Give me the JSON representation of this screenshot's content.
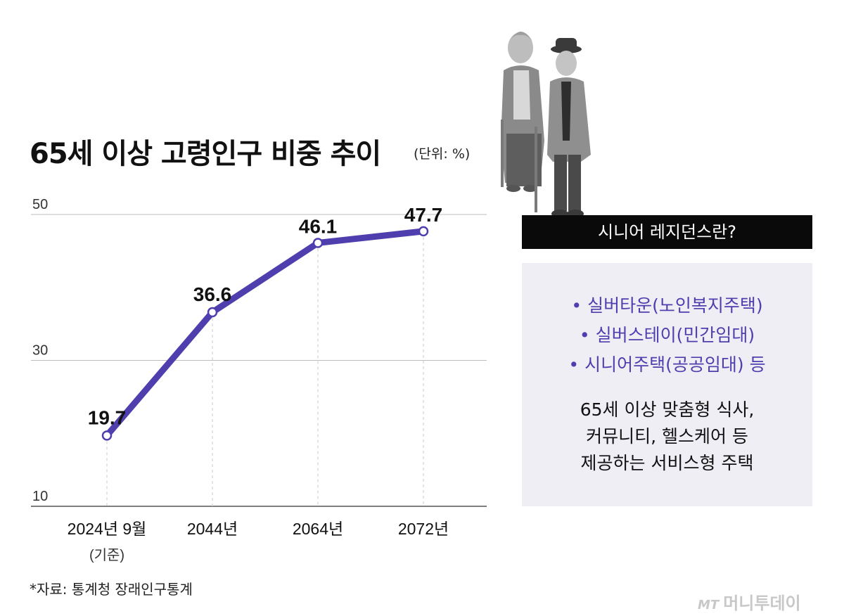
{
  "title": "65세 이상 고령인구 비중 추이",
  "unit": "(단위: %)",
  "chart_data": {
    "type": "line",
    "title": "65세 이상 고령인구 비중 추이",
    "unit": "(단위: %)",
    "categories": [
      "2024년 9월",
      "2044년",
      "2064년",
      "2072년"
    ],
    "category_sublabels": [
      "(기준)",
      "",
      "",
      ""
    ],
    "values": [
      19.7,
      36.6,
      46.1,
      47.7
    ],
    "value_labels": [
      "19.7",
      "36.6",
      "46.1",
      "47.7"
    ],
    "y_ticks": [
      10,
      30,
      50
    ],
    "ylim": [
      10,
      50
    ],
    "grid": true,
    "line_color": "#4f3fae"
  },
  "source": "*자료: 통계청 장래인구통계",
  "banner": "시니어 레지던스란?",
  "panel": {
    "bullets": [
      "• 실버타운(노인복지주택)",
      "• 실버스테이(민간임대)",
      "• 시니어주택(공공임대) 등"
    ],
    "description": [
      "65세 이상 맞춤형 식사,",
      "커뮤니티, 헬스케어 등",
      "제공하는 서비스형 주택"
    ]
  },
  "logo": {
    "mark": "MT",
    "name": "머니투데이"
  }
}
